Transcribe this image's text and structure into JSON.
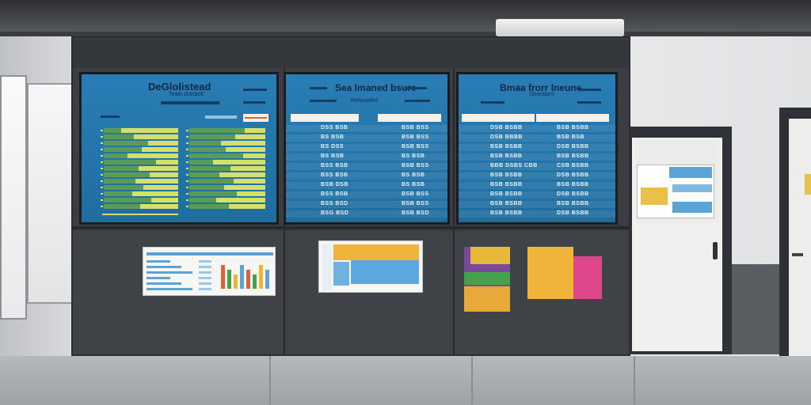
{
  "screens": [
    {
      "title": "DeGlolistead",
      "subtitle": "Teath dstrtaolt"
    },
    {
      "title": "Sea lmaned bsure",
      "subtitle": "Retsoaded"
    },
    {
      "title": "Bmaa frorr lneune",
      "subtitle": "Deentarnt"
    }
  ],
  "screen2_rows": [
    "DSS BSB",
    "BS BSB",
    "BS DSS",
    "BS BSB",
    "BSS BSB",
    "BSS BSB",
    "BSB DSB",
    "BSS BSB",
    "BSS BSD",
    "BSG BSD"
  ],
  "screen2_right_rows": [
    "BSB BSS",
    "BSB BSS",
    "BSB BSS",
    "BS BSB",
    "BSB BSS",
    "BS BSB",
    "BS BSB",
    "BSB BSS",
    "BSB BSS",
    "BSB BSD"
  ],
  "screen3_rows": [
    "DSB BSBB",
    "DSB BBBB",
    "BSB BSBB",
    "BSB BSBB",
    "BBB DSBS CBB",
    "BSB BSBB",
    "BSB BSBB",
    "BSB BSBB",
    "BSB BSBB",
    "BSB BSBB"
  ],
  "screen3_right_rows": [
    "BSB BSBB",
    "BSB BSB",
    "DSB BSBB",
    "BSB BSBB",
    "CSB BSBB",
    "DSB BSBB",
    "BSB BSBB",
    "DSB BSBB",
    "BSB BSBB",
    "DSB BSBB"
  ],
  "colors": {
    "screen_blue": "#2274a9",
    "bar_green": "#5a9b55",
    "bar_yellow": "#d4e06a",
    "wall_dark": "#3a3d42"
  }
}
